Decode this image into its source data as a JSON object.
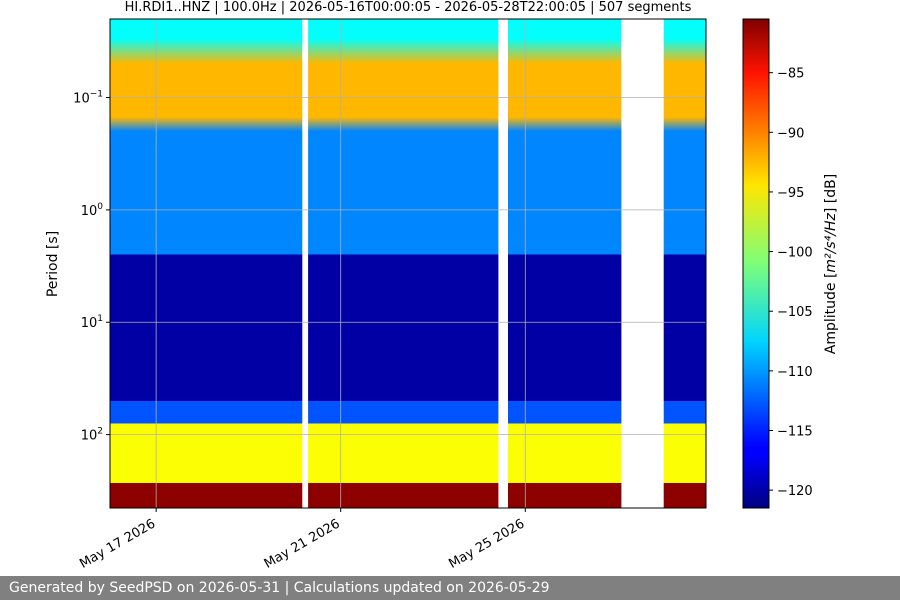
{
  "chart_data": {
    "type": "heatmap",
    "title": "HI.RDI1..HNZ | 100.0Hz | 2026-05-16T00:00:05 - 2026-05-28T22:00:05 | 507 segments",
    "ylabel": "Period [s]",
    "xlabel": "",
    "yscale": "log",
    "y_inverted": true,
    "ylim_seconds": [
      0.02,
      450
    ],
    "y_tick_values": [
      0.1,
      1,
      10,
      100
    ],
    "y_ticks": [
      {
        "base": "10",
        "exp": "−1"
      },
      {
        "base": "10",
        "exp": "0"
      },
      {
        "base": "10",
        "exp": "1"
      },
      {
        "base": "10",
        "exp": "2"
      }
    ],
    "x_start": "2026-05-16T00:00:05",
    "x_end": "2026-05-28T22:00:05",
    "x_ticks": [
      {
        "date": "2026-05-17",
        "label": "May 17 2026"
      },
      {
        "date": "2026-05-21",
        "label": "May 21 2026"
      },
      {
        "date": "2026-05-25",
        "label": "May 25 2026"
      }
    ],
    "grid": true,
    "segments_count": 507,
    "data_gaps": [
      {
        "start": "2026-05-20T04:00",
        "end": "2026-05-20T07:00"
      },
      {
        "start": "2026-05-24T10:00",
        "end": "2026-05-24T15:00"
      },
      {
        "start": "2026-05-27T02:00",
        "end": "2026-05-28T00:00"
      }
    ],
    "colorbar": {
      "label_pre": "Amplitude [",
      "label_math": "m²/s⁴/Hz",
      "label_post": "] [dB]",
      "colormap": "jet",
      "range": [
        -121.5,
        -80.5
      ],
      "ticks": [
        -85,
        -90,
        -95,
        -100,
        -105,
        -110,
        -115,
        -120
      ],
      "tick_labels": [
        "−85",
        "−90",
        "−95",
        "−100",
        "−105",
        "−110",
        "−115",
        "−120"
      ]
    },
    "amplitude_bands_db": [
      {
        "period_from": 0.02,
        "period_to": 0.03,
        "db": -106
      },
      {
        "period_from": 0.05,
        "period_to": 0.15,
        "db": -93
      },
      {
        "period_from": 0.2,
        "period_to": 2.5,
        "db": -111
      },
      {
        "period_from": 2.5,
        "period_to": 50,
        "db": -120
      },
      {
        "period_from": 50,
        "period_to": 80,
        "db": -113
      },
      {
        "period_from": 80,
        "period_to": 270,
        "db": -96
      },
      {
        "period_from": 270,
        "period_to": 450,
        "db": -81
      }
    ]
  },
  "footer": {
    "text": "Generated by SeedPSD on 2026-05-31 | Calculations updated on 2026-05-29"
  }
}
